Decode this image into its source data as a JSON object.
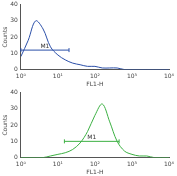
{
  "chart_data": [
    {
      "type": "line",
      "xlabel": "FL1-H",
      "ylabel": "Counts",
      "log": "x",
      "grid": false,
      "color": "#2b4fa8",
      "x": [
        1,
        1.58,
        2.51,
        3.98,
        6.31,
        10,
        15.8,
        25.1,
        39.8,
        63.1,
        100,
        158,
        251,
        398,
        631,
        1000,
        1585,
        2512,
        3981,
        6310,
        10000
      ],
      "values": [
        8,
        18,
        30,
        25,
        14,
        9,
        6,
        4,
        3,
        2,
        2,
        1,
        1,
        1,
        0,
        0,
        0,
        0,
        0,
        0,
        0
      ],
      "xlim": [
        1,
        10000
      ],
      "xticks": [
        {
          "value": 1,
          "label": "10⁰"
        },
        {
          "value": 10,
          "label": "10¹"
        },
        {
          "value": 100,
          "label": "10²"
        },
        {
          "value": 1000,
          "label": "10³"
        },
        {
          "value": 10000,
          "label": "10⁴"
        }
      ],
      "ylim": [
        0,
        40
      ],
      "yticks": [
        0,
        10,
        20,
        30,
        40
      ],
      "gates": [
        {
          "label": "M1",
          "x": [
            1,
            20
          ],
          "y": 12
        }
      ]
    },
    {
      "type": "line",
      "xlabel": "FL1-H",
      "ylabel": "Counts",
      "log": "x",
      "grid": false,
      "color": "#3cb043",
      "x": [
        1,
        1.58,
        2.51,
        3.98,
        6.31,
        10,
        15.8,
        25.1,
        39.8,
        63.1,
        100,
        158,
        251,
        398,
        631,
        1000,
        1585,
        2512,
        3981,
        6310,
        10000
      ],
      "values": [
        0,
        0,
        0,
        0,
        1,
        2,
        3,
        5,
        9,
        16,
        26,
        33,
        22,
        10,
        4,
        2,
        1,
        1,
        0,
        0,
        0
      ],
      "xlim": [
        1,
        10000
      ],
      "xticks": [
        {
          "value": 1,
          "label": "10⁰"
        },
        {
          "value": 10,
          "label": "10¹"
        },
        {
          "value": 100,
          "label": "10²"
        },
        {
          "value": 1000,
          "label": "10³"
        },
        {
          "value": 10000,
          "label": "10⁴"
        }
      ],
      "ylim": [
        0,
        40
      ],
      "yticks": [
        0,
        10,
        20,
        30,
        40
      ],
      "gates": [
        {
          "label": "M1",
          "x": [
            15,
            450
          ],
          "y": 10
        }
      ]
    }
  ]
}
